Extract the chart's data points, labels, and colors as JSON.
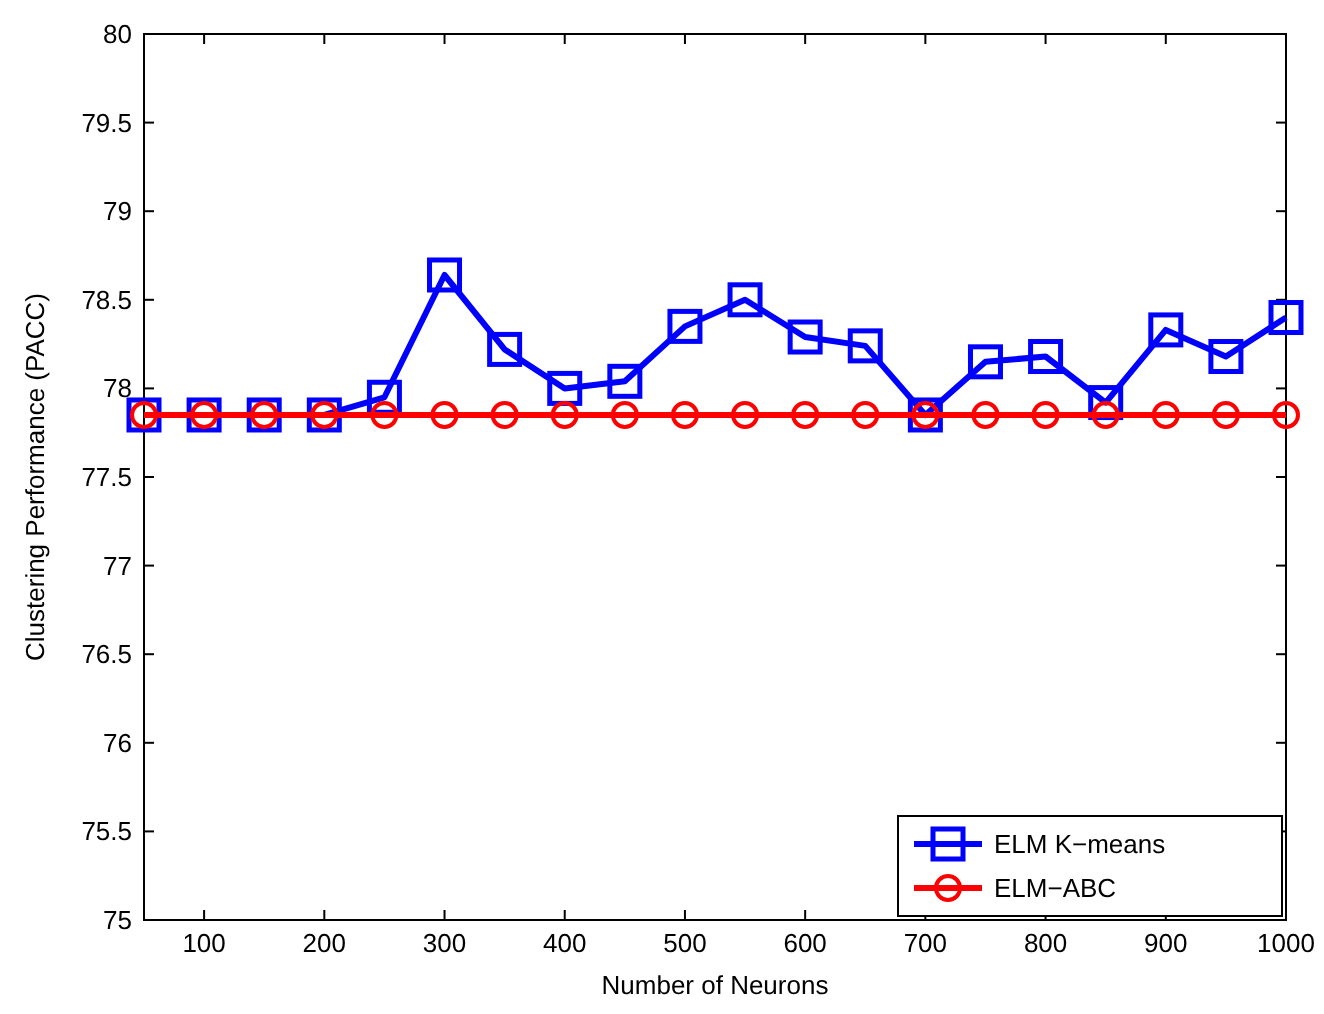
{
  "chart_data": {
    "type": "line",
    "xlabel": "Number of Neurons",
    "ylabel": "Clustering Performance (PACC)",
    "x": [
      50,
      100,
      150,
      200,
      250,
      300,
      350,
      400,
      450,
      500,
      550,
      600,
      650,
      700,
      750,
      800,
      850,
      900,
      950,
      1000
    ],
    "series": [
      {
        "name": "ELM K−means",
        "color": "#0000ff",
        "marker": "square",
        "values": [
          77.85,
          77.85,
          77.85,
          77.85,
          77.95,
          78.64,
          78.22,
          78.0,
          78.04,
          78.35,
          78.5,
          78.29,
          78.24,
          77.85,
          78.15,
          78.18,
          77.92,
          78.33,
          78.18,
          78.4
        ]
      },
      {
        "name": "ELM−ABC",
        "color": "#ff0000",
        "marker": "circle",
        "values": [
          77.85,
          77.85,
          77.85,
          77.85,
          77.85,
          77.85,
          77.85,
          77.85,
          77.85,
          77.85,
          77.85,
          77.85,
          77.85,
          77.85,
          77.85,
          77.85,
          77.85,
          77.85,
          77.85,
          77.85
        ]
      }
    ],
    "xlim": [
      50,
      1000
    ],
    "xticks": [
      100,
      200,
      300,
      400,
      500,
      600,
      700,
      800,
      900,
      1000
    ],
    "ylim": [
      75,
      80
    ],
    "yticks": [
      75,
      75.5,
      76,
      76.5,
      77,
      77.5,
      78,
      78.5,
      79,
      79.5,
      80
    ],
    "grid": false,
    "legend": "bottom right",
    "line_style": "solid"
  }
}
